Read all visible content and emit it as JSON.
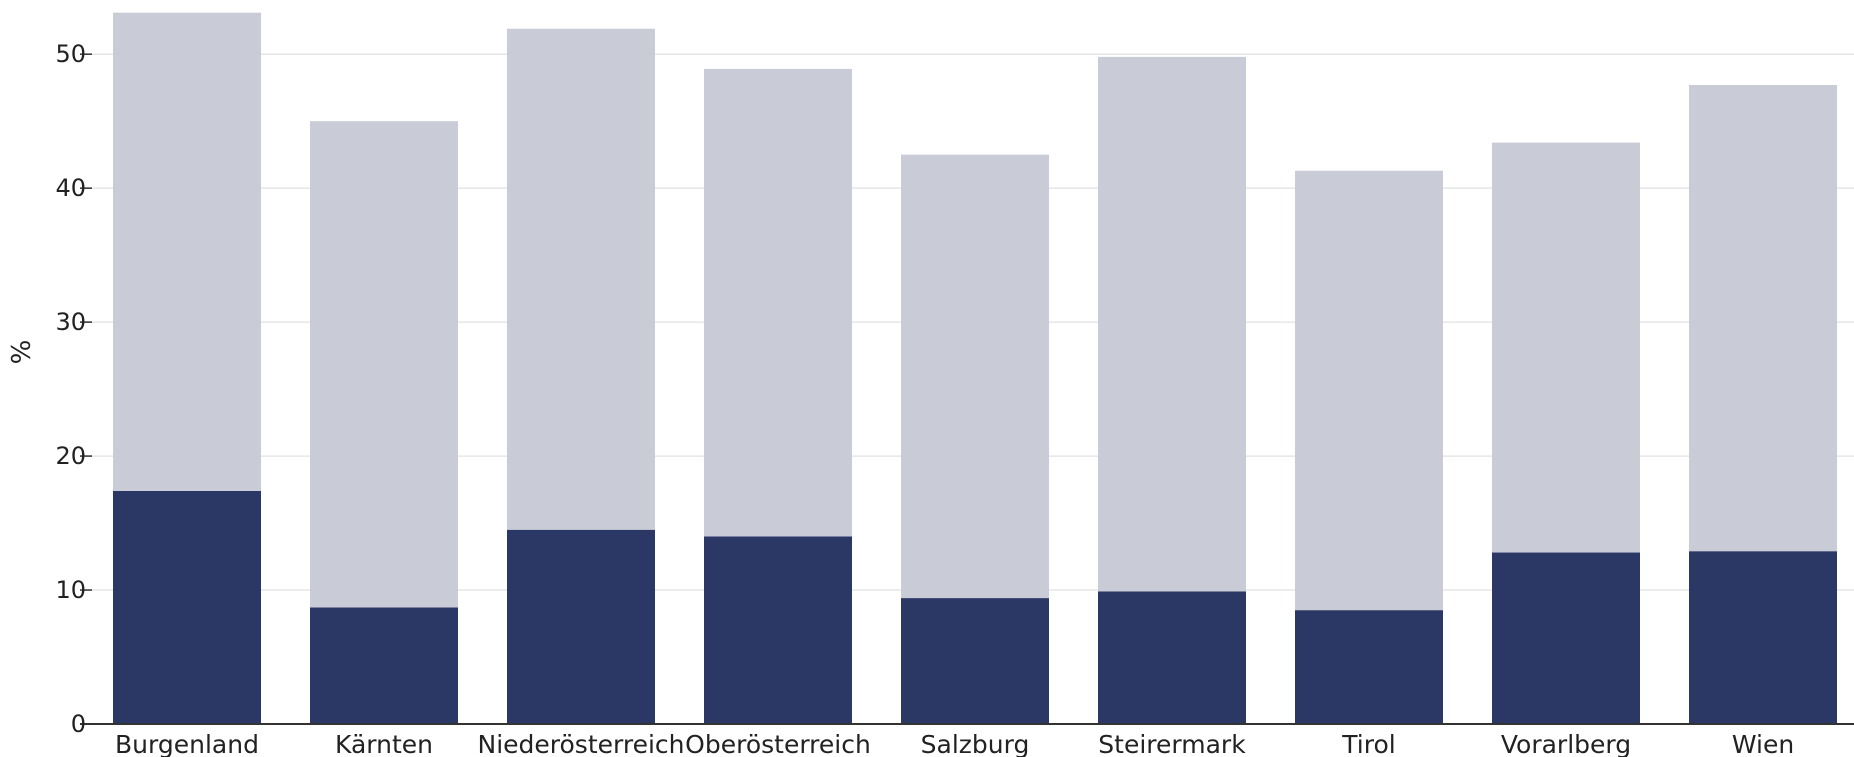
{
  "chart_data": {
    "type": "bar",
    "stacked": true,
    "ylabel": "%",
    "ylim": [
      0,
      53
    ],
    "yticks": [
      0,
      10,
      20,
      30,
      40,
      50
    ],
    "grid": true,
    "categories": [
      "Burgenland",
      "Kärnten",
      "Niederösterreich",
      "Oberösterreich",
      "Salzburg",
      "Steirermark",
      "Tirol",
      "Vorarlberg",
      "Wien"
    ],
    "series": [
      {
        "color": "#2b3765",
        "values": [
          17.4,
          8.7,
          14.5,
          14.0,
          9.4,
          9.9,
          8.5,
          12.8,
          12.9
        ]
      },
      {
        "color": "#c9cbd7",
        "values": [
          35.7,
          36.3,
          37.4,
          34.9,
          33.1,
          39.9,
          32.8,
          30.6,
          34.8
        ]
      }
    ],
    "colors": {
      "grid": "#e6e6e6",
      "axis": "#333333"
    }
  }
}
